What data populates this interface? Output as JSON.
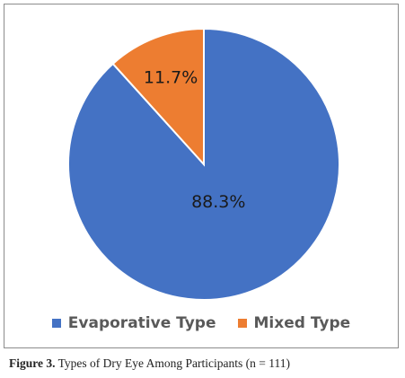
{
  "chart_data": {
    "type": "pie",
    "slices": [
      {
        "label": "Evaporative Type",
        "value": 88.3,
        "display": "88.3%",
        "color": "#4472c4"
      },
      {
        "label": "Mixed Type",
        "value": 11.7,
        "display": "11.7%",
        "color": "#ed7d31"
      }
    ],
    "legend_position": "bottom"
  },
  "legend": {
    "items": [
      {
        "label": "Evaporative Type",
        "color": "#4472c4"
      },
      {
        "label": "Mixed Type",
        "color": "#ed7d31"
      }
    ]
  },
  "caption": {
    "prefix": "Figure 3.",
    "text": " Types of Dry Eye Among Participants (n = 111)"
  }
}
